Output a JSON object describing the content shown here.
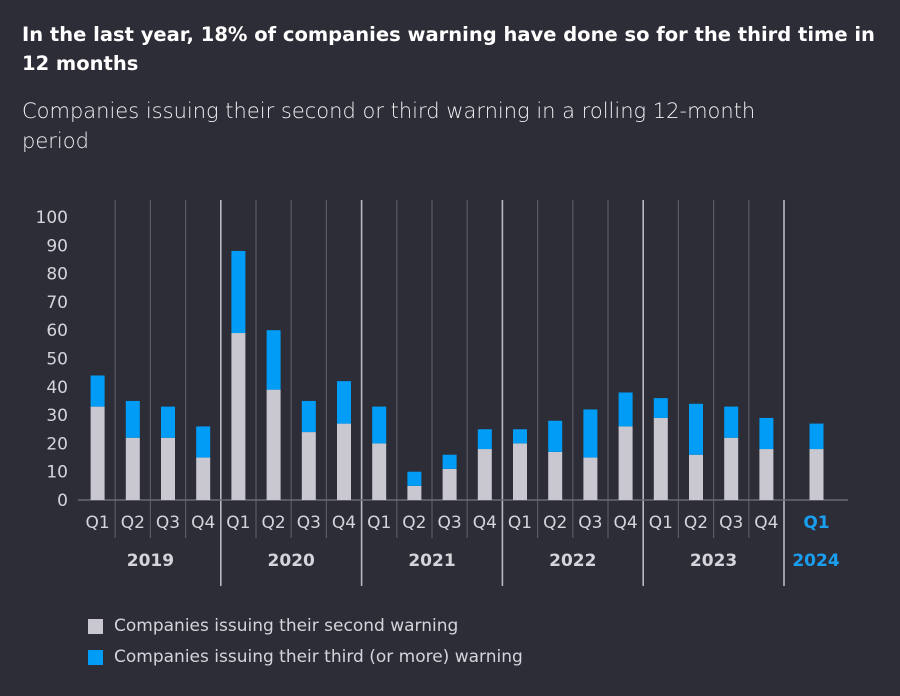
{
  "header": {
    "title": "In the last year, 18% of companies warning have done so for the third time in 12 months",
    "subtitle": "Companies issuing their second or third warning in a rolling 12-month period"
  },
  "colors": {
    "second": "#c9c8d0",
    "third": "#009cf5",
    "highlight": "#1a9ff0",
    "background": "#2d2d37"
  },
  "chart_data": {
    "type": "bar",
    "stacked": true,
    "title": "In the last year, 18% of companies warning have done so for the third time in 12 months",
    "subtitle": "Companies issuing their second or third warning in a rolling 12-month period",
    "ylim": [
      0,
      100
    ],
    "yticks": [
      "0",
      "10",
      "20",
      "30",
      "40",
      "50",
      "60",
      "70",
      "80",
      "90",
      "100"
    ],
    "grid": false,
    "legend_position": "bottom-left",
    "years": [
      {
        "label": "2019",
        "quarters": [
          "Q1",
          "Q2",
          "Q3",
          "Q4"
        ]
      },
      {
        "label": "2020",
        "quarters": [
          "Q1",
          "Q2",
          "Q3",
          "Q4"
        ]
      },
      {
        "label": "2021",
        "quarters": [
          "Q1",
          "Q2",
          "Q3",
          "Q4"
        ]
      },
      {
        "label": "2022",
        "quarters": [
          "Q1",
          "Q2",
          "Q3",
          "Q4"
        ]
      },
      {
        "label": "2023",
        "quarters": [
          "Q1",
          "Q2",
          "Q3",
          "Q4"
        ]
      },
      {
        "label": "2024",
        "quarters": [
          "Q1"
        ],
        "highlight": true
      }
    ],
    "series": [
      {
        "name": "Companies issuing their second warning",
        "values": [
          33,
          22,
          22,
          15,
          59,
          39,
          24,
          27,
          20,
          5,
          11,
          18,
          20,
          17,
          15,
          26,
          29,
          16,
          22,
          18,
          18
        ]
      },
      {
        "name": "Companies issuing their third (or more) warning",
        "values": [
          11,
          13,
          11,
          11,
          29,
          21,
          11,
          15,
          13,
          5,
          5,
          7,
          5,
          11,
          17,
          12,
          7,
          18,
          11,
          11,
          9
        ]
      }
    ]
  }
}
